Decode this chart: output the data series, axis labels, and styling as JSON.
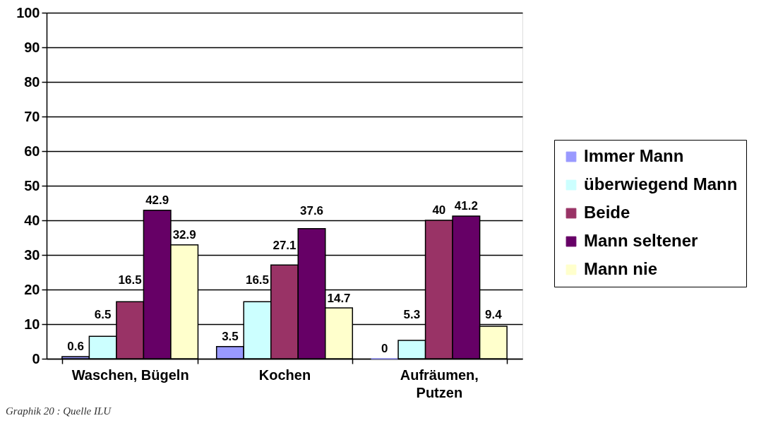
{
  "chart_data": {
    "type": "bar",
    "categories": [
      "Waschen, Bügeln",
      "Kochen",
      "Aufräumen, Putzen"
    ],
    "series": [
      {
        "name": "Immer Mann",
        "color": "#9999ff",
        "values": [
          0.6,
          3.5,
          0
        ]
      },
      {
        "name": "überwiegend Mann",
        "color": "#ccffff",
        "values": [
          6.5,
          16.5,
          5.3
        ]
      },
      {
        "name": "Beide",
        "color": "#993366",
        "values": [
          16.5,
          27.1,
          40
        ]
      },
      {
        "name": "Mann seltener",
        "color": "#660066",
        "values": [
          42.9,
          37.6,
          41.2
        ]
      },
      {
        "name": "Mann nie",
        "color": "#ffffcc",
        "values": [
          32.9,
          14.7,
          9.4
        ]
      }
    ],
    "ylim": [
      0,
      100
    ],
    "yticks": [
      0,
      10,
      20,
      30,
      40,
      50,
      60,
      70,
      80,
      90,
      100
    ],
    "grid": "y",
    "legend": "right",
    "data_labels": true,
    "annotations": [
      "Graphik 20 : Quelle ILU"
    ]
  }
}
